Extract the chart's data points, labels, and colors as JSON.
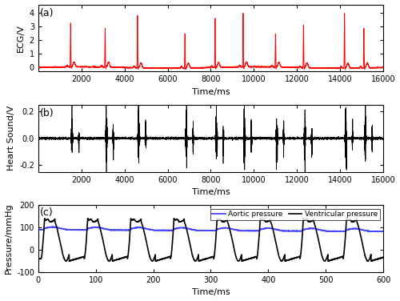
{
  "ecg_xlim": [
    0,
    16000
  ],
  "ecg_ylim": [
    -0.3,
    4.6
  ],
  "ecg_yticks": [
    0,
    1,
    2,
    3,
    4
  ],
  "ecg_xticks": [
    2000,
    4000,
    6000,
    8000,
    10000,
    12000,
    14000,
    16000
  ],
  "ecg_color": "#ff0000",
  "ecg_label_x": "Time/ms",
  "ecg_label_y": "ECG/V",
  "ecg_panel": "(a)",
  "hs_xlim": [
    0,
    16000
  ],
  "hs_ylim": [
    -0.25,
    0.25
  ],
  "hs_yticks": [
    -0.2,
    0.0,
    0.2
  ],
  "hs_xticks": [
    2000,
    4000,
    6000,
    8000,
    10000,
    12000,
    14000,
    16000
  ],
  "hs_color": "#000000",
  "hs_label_x": "Time/ms",
  "hs_label_y": "Heart Sound/V",
  "hs_panel": "(b)",
  "pres_xlim": [
    0,
    600
  ],
  "pres_ylim": [
    -100,
    200
  ],
  "pres_yticks": [
    -100,
    0,
    100,
    200
  ],
  "pres_xticks": [
    0,
    100,
    200,
    300,
    400,
    500,
    600
  ],
  "aortic_color": "#4444ff",
  "ventricular_color": "#000000",
  "pres_label_x": "Time/ms",
  "pres_label_y": "Pressure/mmHg",
  "pres_panel": "(c)",
  "aortic_label": "Aortic pressure",
  "ventricular_label": "Ventricular pressure",
  "background_color": "#ffffff",
  "figure_width": 5.0,
  "figure_height": 3.76
}
